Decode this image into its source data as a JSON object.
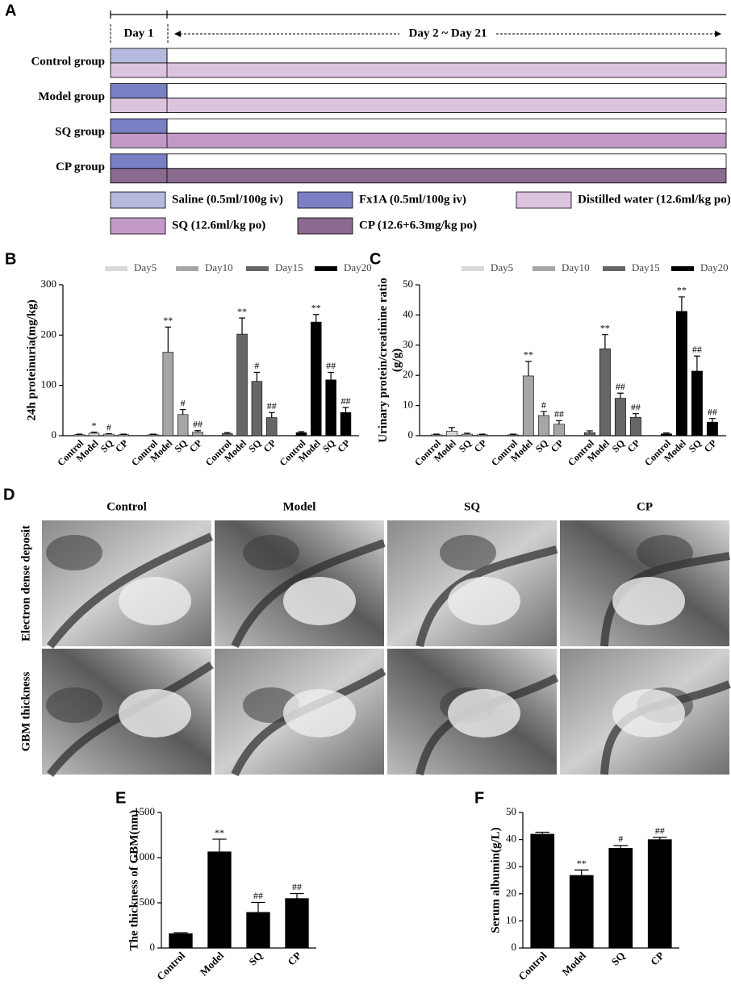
{
  "panel_a": {
    "label": "A",
    "day1": "Day 1",
    "days": "Day 2 ~ Day 21",
    "groups": [
      {
        "name": "Control group",
        "day1_color": "#b4b9dd",
        "gavage_color": "#dcc4df"
      },
      {
        "name": "Model group",
        "day1_color": "#7b7fc4",
        "gavage_color": "#dcc4df"
      },
      {
        "name": "SQ group",
        "day1_color": "#7b7fc4",
        "gavage_color": "#c39ac7"
      },
      {
        "name": "CP group",
        "day1_color": "#7b7fc4",
        "gavage_color": "#8a6a8e"
      }
    ],
    "legend": [
      {
        "label": "Saline  (0.5ml/100g iv)",
        "color": "#b4b9dd"
      },
      {
        "label": "Fx1A (0.5ml/100g  iv)",
        "color": "#7b7fc4"
      },
      {
        "label": "Distilled water (12.6ml/kg po)",
        "color": "#dcc4df"
      },
      {
        "label": "SQ (12.6ml/kg po)",
        "color": "#c39ac7"
      },
      {
        "label": "CP (12.6+6.3mg/kg po)",
        "color": "#8a6a8e"
      }
    ]
  },
  "chart_data": [
    {
      "label": "B",
      "type": "bar",
      "ylabel": [
        "24h proteinuria(mg/kg)"
      ],
      "categories": [
        "Control",
        "Model",
        "SQ",
        "CP"
      ],
      "series": [
        {
          "name": "Day5",
          "color": "#d9d9d9",
          "values": [
            2,
            5,
            3,
            2
          ],
          "errors": [
            1,
            2,
            1,
            1
          ],
          "annotations": [
            null,
            "*",
            "#",
            null
          ]
        },
        {
          "name": "Day10",
          "color": "#a6a6a6",
          "values": [
            2,
            166,
            42,
            7
          ],
          "errors": [
            1,
            50,
            10,
            3
          ],
          "annotations": [
            null,
            "**",
            "#",
            "##"
          ]
        },
        {
          "name": "Day15",
          "color": "#666666",
          "values": [
            4,
            202,
            108,
            36
          ],
          "errors": [
            2,
            32,
            18,
            10
          ],
          "annotations": [
            null,
            "**",
            "#",
            "##"
          ]
        },
        {
          "name": "Day20",
          "color": "#000000",
          "values": [
            6,
            226,
            111,
            46
          ],
          "errors": [
            2,
            15,
            15,
            10
          ],
          "annotations": [
            null,
            "**",
            "##",
            "##"
          ]
        }
      ],
      "ylim": [
        0,
        300
      ],
      "yticks": [
        0,
        100,
        200,
        300
      ]
    },
    {
      "label": "C",
      "type": "bar",
      "ylabel": [
        "Urinary protein/creatinine ratio",
        "(g/g)"
      ],
      "categories": [
        "Control",
        "Model",
        "SQ",
        "CP"
      ],
      "series": [
        {
          "name": "Day5",
          "color": "#d9d9d9",
          "values": [
            0.3,
            1.5,
            0.5,
            0.3
          ],
          "errors": [
            0.2,
            1.2,
            0.3,
            0.2
          ],
          "annotations": [
            null,
            null,
            null,
            null
          ]
        },
        {
          "name": "Day10",
          "color": "#a6a6a6",
          "values": [
            0.3,
            19.8,
            6.7,
            3.8
          ],
          "errors": [
            0.2,
            4.8,
            1.3,
            1.2
          ],
          "annotations": [
            null,
            "**",
            "#",
            "##"
          ]
        },
        {
          "name": "Day15",
          "color": "#666666",
          "values": [
            1.0,
            28.8,
            12.4,
            6.1
          ],
          "errors": [
            0.6,
            4.7,
            1.7,
            1.2
          ],
          "annotations": [
            null,
            "**",
            "##",
            "##"
          ]
        },
        {
          "name": "Day20",
          "color": "#000000",
          "values": [
            0.6,
            41.2,
            21.4,
            4.5
          ],
          "errors": [
            0.3,
            4.8,
            5,
            1.2
          ],
          "annotations": [
            null,
            "**",
            "##",
            "##"
          ]
        }
      ],
      "ylim": [
        0,
        50
      ],
      "yticks": [
        0,
        10,
        20,
        30,
        40,
        50
      ]
    },
    {
      "label": "E",
      "type": "bar",
      "ylabel": [
        "The thickness of GBM(nm)"
      ],
      "categories": [
        "Control",
        "Model",
        "SQ",
        "CP"
      ],
      "values": [
        160,
        1065,
        395,
        548
      ],
      "errors": [
        10,
        140,
        110,
        55
      ],
      "annotations": [
        null,
        "**",
        "##",
        "##"
      ],
      "color": "#000000",
      "ylim": [
        0,
        1500
      ],
      "yticks": [
        0,
        500,
        1000,
        1500
      ]
    },
    {
      "label": "F",
      "type": "bar",
      "ylabel": [
        "Serum albumin(g/L)"
      ],
      "categories": [
        "Control",
        "Model",
        "SQ",
        "CP"
      ],
      "values": [
        42,
        26.8,
        36.8,
        40
      ],
      "errors": [
        0.7,
        2,
        1,
        0.8
      ],
      "annotations": [
        null,
        "**",
        "#",
        "##"
      ],
      "color": "#000000",
      "ylim": [
        0,
        50
      ],
      "yticks": [
        0,
        10,
        20,
        30,
        40,
        50
      ]
    }
  ],
  "panel_d": {
    "label": "D",
    "columns": [
      "Control",
      "Model",
      "SQ",
      "CP"
    ],
    "rows": [
      "Electron dense deposit",
      "GBM thickness"
    ]
  }
}
